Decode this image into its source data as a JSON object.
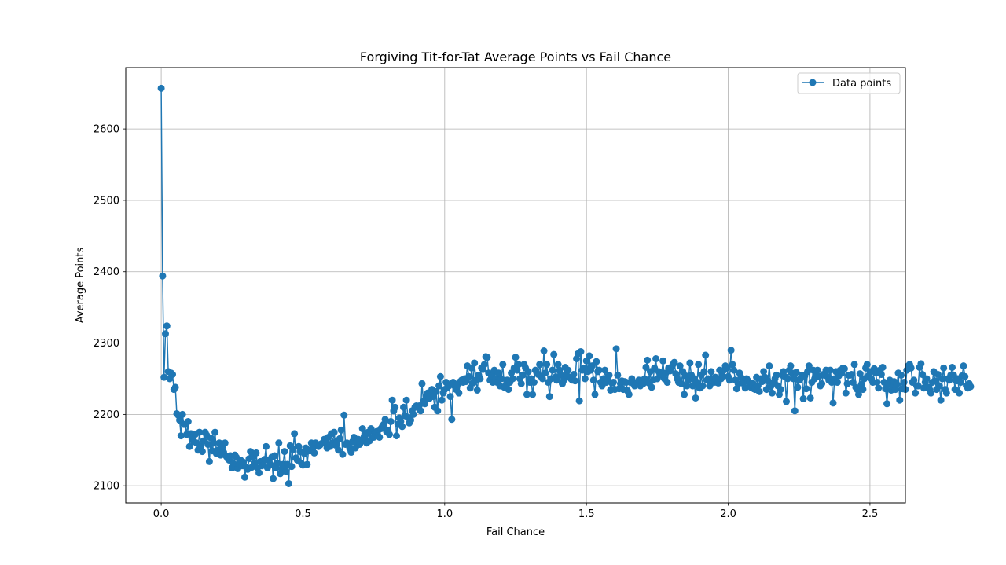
{
  "chart_data": {
    "type": "line",
    "title": "Forgiving Tit-for-Tat Average Points vs Fail Chance",
    "xlabel": "Fail Chance",
    "ylabel": "Average Points",
    "xlim": [
      -0.125,
      2.625
    ],
    "ylim": [
      2076,
      2686
    ],
    "x_ticks": [
      0.0,
      0.5,
      1.0,
      1.5,
      2.0,
      2.5
    ],
    "x_tick_labels": [
      "0.0",
      "0.5",
      "1.0",
      "1.5",
      "2.0",
      "2.5"
    ],
    "y_ticks": [
      2100,
      2200,
      2300,
      2400,
      2500,
      2600
    ],
    "y_tick_labels": [
      "2100",
      "2200",
      "2300",
      "2400",
      "2500",
      "2600"
    ],
    "grid": true,
    "legend_position": "top-right",
    "colors": {
      "series": "#1f77b4",
      "grid": "#b0b0b0",
      "axes": "#000000"
    },
    "series": [
      {
        "name": "Data points",
        "marker": "circle",
        "x_start": 0.0,
        "x_step": 0.005,
        "values": [
          2657,
          2394,
          2252,
          2313,
          2324,
          2260,
          2250,
          2258,
          2256,
          2235,
          2238,
          2201,
          2199,
          2192,
          2170,
          2200,
          2186,
          2186,
          2172,
          2190,
          2155,
          2173,
          2168,
          2162,
          2172,
          2160,
          2150,
          2175,
          2155,
          2148,
          2163,
          2175,
          2171,
          2158,
          2134,
          2167,
          2149,
          2160,
          2175,
          2145,
          2150,
          2160,
          2143,
          2155,
          2147,
          2160,
          2141,
          2138,
          2136,
          2142,
          2125,
          2131,
          2143,
          2140,
          2124,
          2130,
          2136,
          2128,
          2133,
          2112,
          2126,
          2123,
          2138,
          2148,
          2126,
          2140,
          2131,
          2146,
          2125,
          2118,
          2134,
          2128,
          2129,
          2137,
          2155,
          2125,
          2136,
          2130,
          2140,
          2110,
          2142,
          2125,
          2132,
          2160,
          2117,
          2124,
          2130,
          2148,
          2120,
          2130,
          2103,
          2156,
          2127,
          2151,
          2173,
          2139,
          2136,
          2155,
          2148,
          2131,
          2129,
          2145,
          2153,
          2130,
          2150,
          2149,
          2160,
          2153,
          2146,
          2160,
          2156,
          2155,
          2157,
          2159,
          2160,
          2165,
          2162,
          2153,
          2168,
          2155,
          2173,
          2160,
          2175,
          2157,
          2163,
          2150,
          2166,
          2178,
          2144,
          2199,
          2158,
          2160,
          2158,
          2152,
          2147,
          2162,
          2168,
          2153,
          2157,
          2165,
          2158,
          2162,
          2180,
          2168,
          2172,
          2160,
          2175,
          2163,
          2180,
          2168,
          2168,
          2175,
          2176,
          2170,
          2168,
          2180,
          2183,
          2186,
          2193,
          2176,
          2178,
          2172,
          2190,
          2220,
          2205,
          2210,
          2170,
          2186,
          2195,
          2190,
          2183,
          2210,
          2198,
          2220,
          2196,
          2188,
          2192,
          2205,
          2200,
          2210,
          2212,
          2210,
          2212,
          2205,
          2243,
          2218,
          2215,
          2225,
          2230,
          2222,
          2228,
          2235,
          2225,
          2210,
          2232,
          2205,
          2240,
          2253,
          2220,
          2230,
          2235,
          2245,
          2238,
          2240,
          2225,
          2193,
          2245,
          2240,
          2235,
          2242,
          2230,
          2246,
          2248,
          2245,
          2250,
          2246,
          2268,
          2253,
          2237,
          2265,
          2244,
          2272,
          2248,
          2234,
          2255,
          2250,
          2265,
          2263,
          2270,
          2281,
          2280,
          2258,
          2248,
          2254,
          2245,
          2262,
          2250,
          2245,
          2258,
          2240,
          2250,
          2270,
          2238,
          2240,
          2248,
          2235,
          2245,
          2258,
          2250,
          2265,
          2280,
          2262,
          2270,
          2250,
          2243,
          2255,
          2270,
          2265,
          2228,
          2260,
          2245,
          2250,
          2228,
          2245,
          2262,
          2258,
          2256,
          2270,
          2253,
          2250,
          2289,
          2258,
          2270,
          2245,
          2225,
          2250,
          2262,
          2284,
          2252,
          2248,
          2270,
          2262,
          2255,
          2243,
          2248,
          2266,
          2255,
          2262,
          2252,
          2250,
          2248,
          2256,
          2247,
          2278,
          2285,
          2219,
          2288,
          2262,
          2265,
          2250,
          2275,
          2260,
          2282,
          2262,
          2268,
          2248,
          2228,
          2274,
          2260,
          2262,
          2245,
          2240,
          2250,
          2262,
          2245,
          2250,
          2255,
          2234,
          2244,
          2245,
          2235,
          2292,
          2255,
          2236,
          2243,
          2247,
          2235,
          2246,
          2245,
          2233,
          2228,
          2245,
          2250,
          2245,
          2240,
          2242,
          2245,
          2248,
          2240,
          2244,
          2243,
          2250,
          2266,
          2276,
          2244,
          2260,
          2238,
          2248,
          2265,
          2278,
          2250,
          2260,
          2255,
          2256,
          2275,
          2250,
          2258,
          2245,
          2265,
          2261,
          2266,
          2270,
          2273,
          2257,
          2250,
          2245,
          2268,
          2243,
          2260,
          2228,
          2254,
          2240,
          2248,
          2272,
          2255,
          2240,
          2250,
          2223,
          2245,
          2270,
          2237,
          2255,
          2240,
          2260,
          2283,
          2248,
          2250,
          2240,
          2260,
          2250,
          2245,
          2252,
          2245,
          2244,
          2262,
          2250,
          2254,
          2262,
          2268,
          2265,
          2253,
          2248,
          2290,
          2270,
          2262,
          2248,
          2236,
          2243,
          2258,
          2252,
          2244,
          2245,
          2237,
          2250,
          2247,
          2244,
          2238,
          2244,
          2236,
          2235,
          2252,
          2240,
          2232,
          2250,
          2246,
          2260,
          2252,
          2235,
          2247,
          2268,
          2239,
          2230,
          2244,
          2250,
          2255,
          2240,
          2228,
          2235,
          2255,
          2260,
          2253,
          2218,
          2250,
          2262,
          2268,
          2258,
          2250,
          2205,
          2259,
          2238,
          2248,
          2250,
          2255,
          2222,
          2254,
          2236,
          2260,
          2268,
          2223,
          2245,
          2262,
          2250,
          2257,
          2262,
          2253,
          2240,
          2243,
          2256,
          2255,
          2262,
          2253,
          2248,
          2262,
          2245,
          2216,
          2250,
          2260,
          2245,
          2254,
          2262,
          2258,
          2265,
          2264,
          2230,
          2243,
          2255,
          2255,
          2256,
          2245,
          2270,
          2238,
          2235,
          2228,
          2257,
          2242,
          2235,
          2250,
          2265,
          2270,
          2254,
          2260,
          2250,
          2245,
          2264,
          2258,
          2245,
          2237,
          2262,
          2256,
          2266,
          2245,
          2236,
          2215,
          2243,
          2248,
          2234,
          2238,
          2246,
          2235,
          2242,
          2258,
          2220,
          2255,
          2236,
          2245,
          2235,
          2262,
          2268,
          2270,
          2265,
          2245,
          2248,
          2230,
          2240,
          2240,
          2266,
          2271,
          2256,
          2237,
          2245,
          2250,
          2238,
          2235,
          2230,
          2245,
          2260,
          2247,
          2235,
          2256,
          2240,
          2220,
          2250,
          2265,
          2235,
          2230,
          2250,
          2248,
          2255,
          2266,
          2255,
          2235,
          2247,
          2250,
          2230,
          2245,
          2254,
          2268,
          2253,
          2240,
          2237,
          2243,
          2239
        ]
      }
    ]
  }
}
